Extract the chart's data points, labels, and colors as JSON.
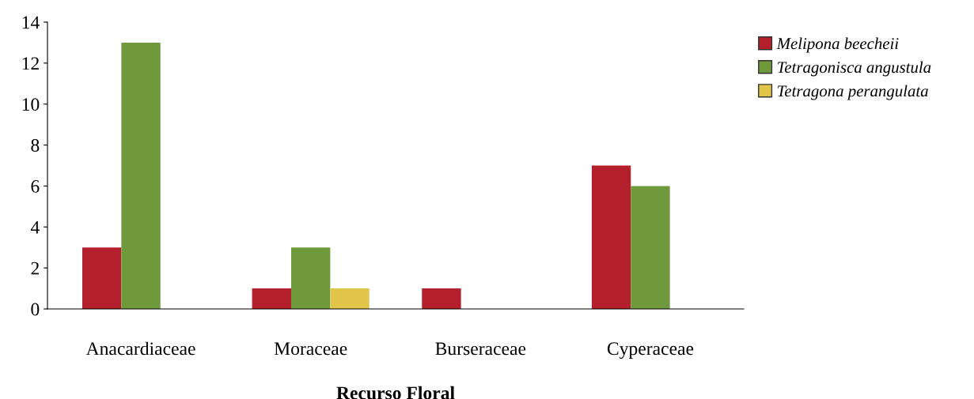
{
  "chart_data": {
    "type": "bar",
    "xlabel": "Recurso Floral",
    "categories": [
      "Anacardiaceae",
      "Moraceae",
      "Burseraceae",
      "Cyperaceae"
    ],
    "series": [
      {
        "name": "Melipona beecheii",
        "color": "#b3202c",
        "values": [
          3,
          1,
          1,
          7
        ]
      },
      {
        "name": "Tetragonisca angustula",
        "color": "#6e9a3c",
        "values": [
          13,
          3,
          0,
          6
        ]
      },
      {
        "name": "Tetragona perangulata",
        "color": "#e2c64a",
        "values": [
          0,
          1,
          0,
          0
        ]
      }
    ],
    "ylim": [
      0,
      14
    ],
    "yticks": [
      0,
      2,
      4,
      6,
      8,
      10,
      12,
      14
    ],
    "grid": false,
    "legend": "top right"
  }
}
